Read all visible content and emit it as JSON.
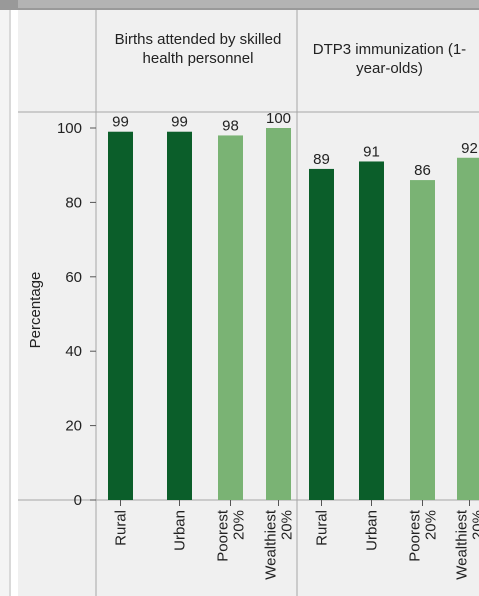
{
  "chart_data": {
    "type": "bar",
    "ylabel": "Percentage",
    "ylim": [
      0,
      100
    ],
    "yticks": [
      0,
      20,
      40,
      60,
      80,
      100
    ],
    "grid": false,
    "categories": [
      "Rural",
      "Urban",
      "Poorest\n20%",
      "Wealthiest\n20%"
    ],
    "panels": [
      {
        "title": "Births attended by skilled health personnel",
        "values": [
          99,
          99,
          98,
          100
        ]
      },
      {
        "title": "DTP3 immunization (1-year-olds)",
        "values": [
          89,
          91,
          86,
          92
        ]
      }
    ],
    "colors": [
      "#0b5e2a",
      "#0b5e2a",
      "#7ab374",
      "#7ab374"
    ]
  }
}
